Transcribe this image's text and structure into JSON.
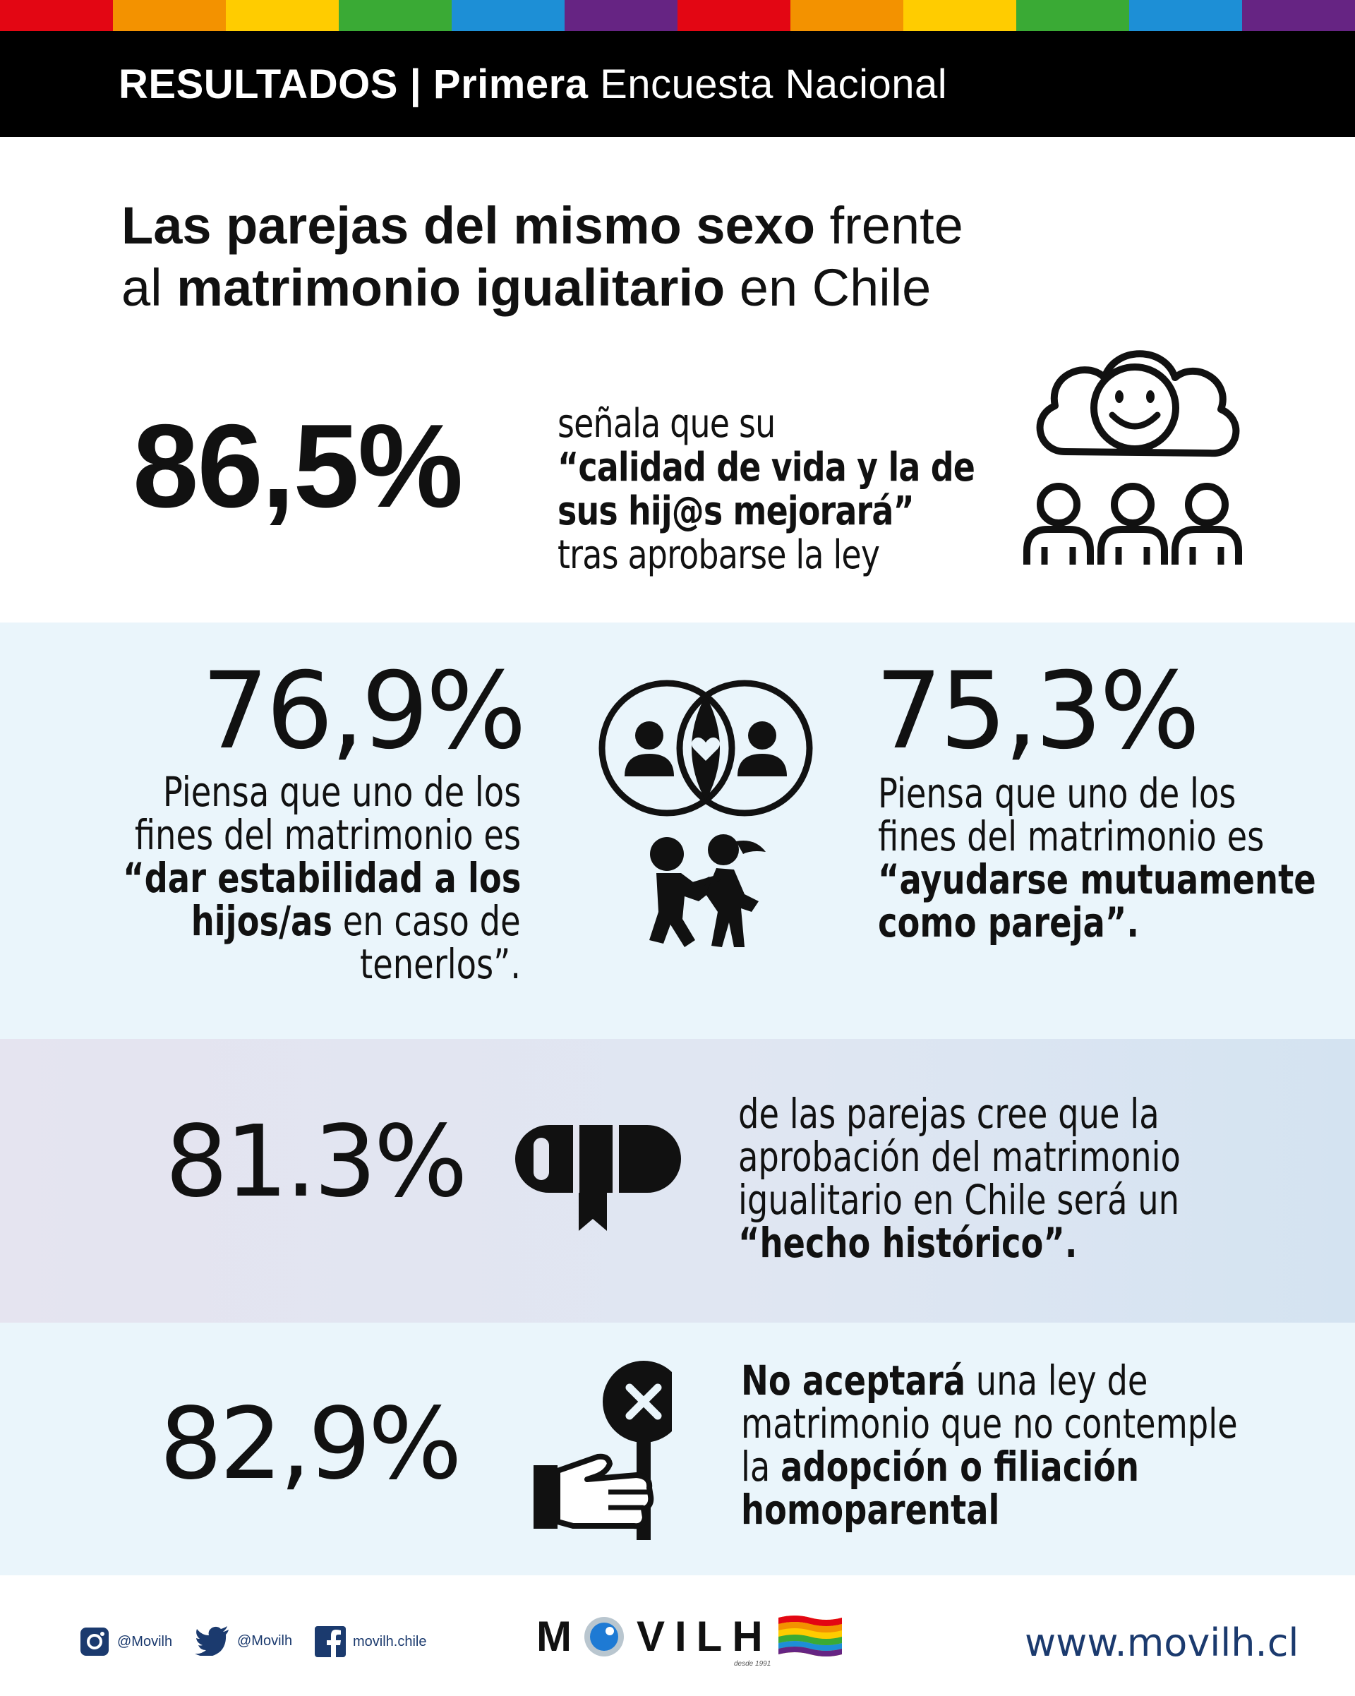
{
  "header": {
    "bold_part": "RESULTADOS | Primera",
    "normal_part": " Encuesta Nacional"
  },
  "colors": {
    "rainbow": [
      "#e30613",
      "#f39200",
      "#ffcc00",
      "#3aaa35",
      "#1d8fd6",
      "#662483",
      "#e30613",
      "#f39200",
      "#ffcc00",
      "#3aaa35",
      "#1d8fd6",
      "#662483"
    ],
    "section_light": "#eaf5fb",
    "footer_blue": "#1b3a6e"
  },
  "title": {
    "l1_bold": "Las parejas del mismo sexo",
    "l1_normal": " frente",
    "l2_normal_a": "al ",
    "l2_bold": "matrimonio igualitario",
    "l2_normal_b": " en Chile"
  },
  "stats": {
    "s1": {
      "percent": "86,5%",
      "line1": "señala que su",
      "line2": "“calidad de vida y la de",
      "line3": "sus hij@s mejorará”",
      "line4": "tras aprobarse la ley",
      "icon": "happy-family-icon"
    },
    "s2": {
      "percent": "76,9%",
      "line1": "Piensa que uno de los",
      "line2": "fines del matrimonio es",
      "line3": "“dar estabilidad a los",
      "line4_bold": "hijos/as",
      "line4_normal": " en caso de",
      "line5": "tenerlos”."
    },
    "s3": {
      "percent": "75,3%",
      "line1": "Piensa que uno de los",
      "line2": "fines del matrimonio es",
      "line3": "“ayudarse mutuamente",
      "line4_bold": "como pareja”",
      "line4_normal": "."
    },
    "s4": {
      "percent": "81.3%",
      "line1": "de las parejas cree que la",
      "line2": "aprobación del matrimonio",
      "line3": "igualitario en Chile será un",
      "line4_bold": "“hecho histórico”",
      "line4_normal": "."
    },
    "s5": {
      "percent": "82,9%",
      "line1_bold": "No aceptará",
      "line1_normal": " una ley de",
      "line2": "matrimonio que no contemple",
      "line3_normal": "la ",
      "line3_bold": "adopción o filiación",
      "line4_bold": "homoparental"
    }
  },
  "footer": {
    "instagram": "@Movilh",
    "twitter": "@Movilh",
    "facebook": "movilh.chile",
    "logo_m": "M",
    "logo_rest": "VILH",
    "logo_tagline": "desde 1991",
    "url": "www.movilh.cl"
  }
}
